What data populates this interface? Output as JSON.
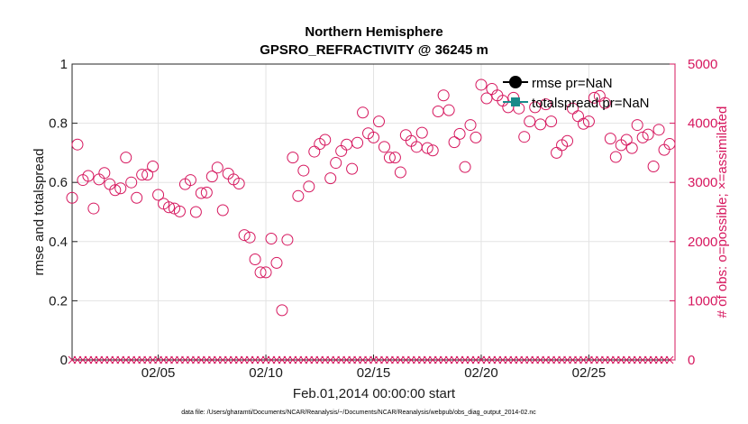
{
  "chart_data": {
    "type": "scatter",
    "title": "Northern Hemisphere",
    "subtitle": "GPSRO_REFRACTIVITY @ 36245 m",
    "xlabel": "Feb.01,2014 00:00:00 start",
    "ylabel": "rmse and totalspread",
    "y2label": "# of obs: o=possible; ×=assimilated",
    "footnote": "data file: /Users/gharamti/Documents/NCAR/Reanalysis/~/Documents/NCAR/Reanalysis/webpub/obs_diag_output_2014-02.nc",
    "xlim": [
      1,
      29
    ],
    "ylim": [
      0,
      1
    ],
    "y2lim": [
      0,
      5000
    ],
    "x_ticks": [
      5,
      10,
      15,
      20,
      25
    ],
    "x_tick_labels": [
      "02/05",
      "02/10",
      "02/15",
      "02/20",
      "02/25"
    ],
    "y_ticks": [
      0,
      0.2,
      0.4,
      0.6,
      0.8,
      1
    ],
    "y_tick_labels": [
      "0",
      "0.2",
      "0.4",
      "0.6",
      "0.8",
      "1"
    ],
    "y2_ticks": [
      0,
      1000,
      2000,
      3000,
      4000,
      5000
    ],
    "y2_tick_labels": [
      "0",
      "1000",
      "2000",
      "3000",
      "4000",
      "5000"
    ],
    "grid": true,
    "legend_position": "top-right",
    "legend": [
      {
        "label": "rmse pr=NaN",
        "color": "#000000",
        "marker": "circle"
      },
      {
        "label": "totalspread pr=NaN",
        "color": "#1a8a8a",
        "marker": "square"
      }
    ],
    "series": [
      {
        "name": "obs possible",
        "axis": "right",
        "marker": "open-circle",
        "color": "#d6175e",
        "x": [
          1.0,
          1.25,
          1.5,
          1.75,
          2.0,
          2.25,
          2.5,
          2.75,
          3.0,
          3.25,
          3.5,
          3.75,
          4.0,
          4.25,
          4.5,
          4.75,
          5.0,
          5.25,
          5.5,
          5.75,
          6.0,
          6.25,
          6.5,
          6.75,
          7.0,
          7.25,
          7.5,
          7.75,
          8.0,
          8.25,
          8.5,
          8.75,
          9.0,
          9.25,
          9.5,
          9.75,
          10.0,
          10.25,
          10.5,
          10.75,
          11.0,
          11.25,
          11.5,
          11.75,
          12.0,
          12.25,
          12.5,
          12.75,
          13.0,
          13.25,
          13.5,
          13.75,
          14.0,
          14.25,
          14.5,
          14.75,
          15.0,
          15.25,
          15.5,
          15.75,
          16.0,
          16.25,
          16.5,
          16.75,
          17.0,
          17.25,
          17.5,
          17.75,
          18.0,
          18.25,
          18.5,
          18.75,
          19.0,
          19.25,
          19.5,
          19.75,
          20.0,
          20.25,
          20.5,
          20.75,
          21.0,
          21.25,
          21.5,
          21.75,
          22.0,
          22.25,
          22.5,
          22.75,
          23.0,
          23.25,
          23.5,
          23.75,
          24.0,
          24.25,
          24.5,
          24.75,
          25.0,
          25.25,
          25.5,
          25.75,
          26.0,
          26.25,
          26.5,
          26.75,
          27.0,
          27.25,
          27.5,
          27.75,
          28.0,
          28.25,
          28.5,
          28.75
        ],
        "values": [
          2740,
          3640,
          3040,
          3110,
          2560,
          3050,
          3160,
          2970,
          2870,
          2900,
          3420,
          3000,
          2740,
          3130,
          3130,
          3270,
          2790,
          2640,
          2580,
          2560,
          2510,
          2970,
          3040,
          2500,
          2820,
          2830,
          3100,
          3250,
          2530,
          3150,
          3050,
          2980,
          2110,
          2070,
          1700,
          1480,
          1480,
          2050,
          1640,
          840,
          2030,
          3420,
          2770,
          3200,
          2930,
          3520,
          3650,
          3720,
          3070,
          3330,
          3530,
          3640,
          3230,
          3670,
          4180,
          3830,
          3760,
          4030,
          3600,
          3420,
          3420,
          3170,
          3800,
          3700,
          3600,
          3840,
          3580,
          3540,
          4200,
          4470,
          4220,
          3680,
          3820,
          3260,
          3970,
          3760,
          4650,
          4420,
          4580,
          4470,
          4380,
          4270,
          4430,
          4250,
          3770,
          4030,
          4270,
          3980,
          4320,
          4030,
          3500,
          3630,
          3700,
          4250,
          4120,
          3990,
          4030,
          4430,
          4460,
          4340,
          3740,
          3430,
          3630,
          3720,
          3580,
          3970,
          3760,
          3810,
          3270,
          3890,
          3550,
          3650
        ]
      },
      {
        "name": "obs assimilated",
        "axis": "right",
        "marker": "x",
        "color": "#d6175e",
        "x_start": 1.0,
        "x_step": 0.25,
        "count": 112,
        "value": 0
      }
    ]
  }
}
